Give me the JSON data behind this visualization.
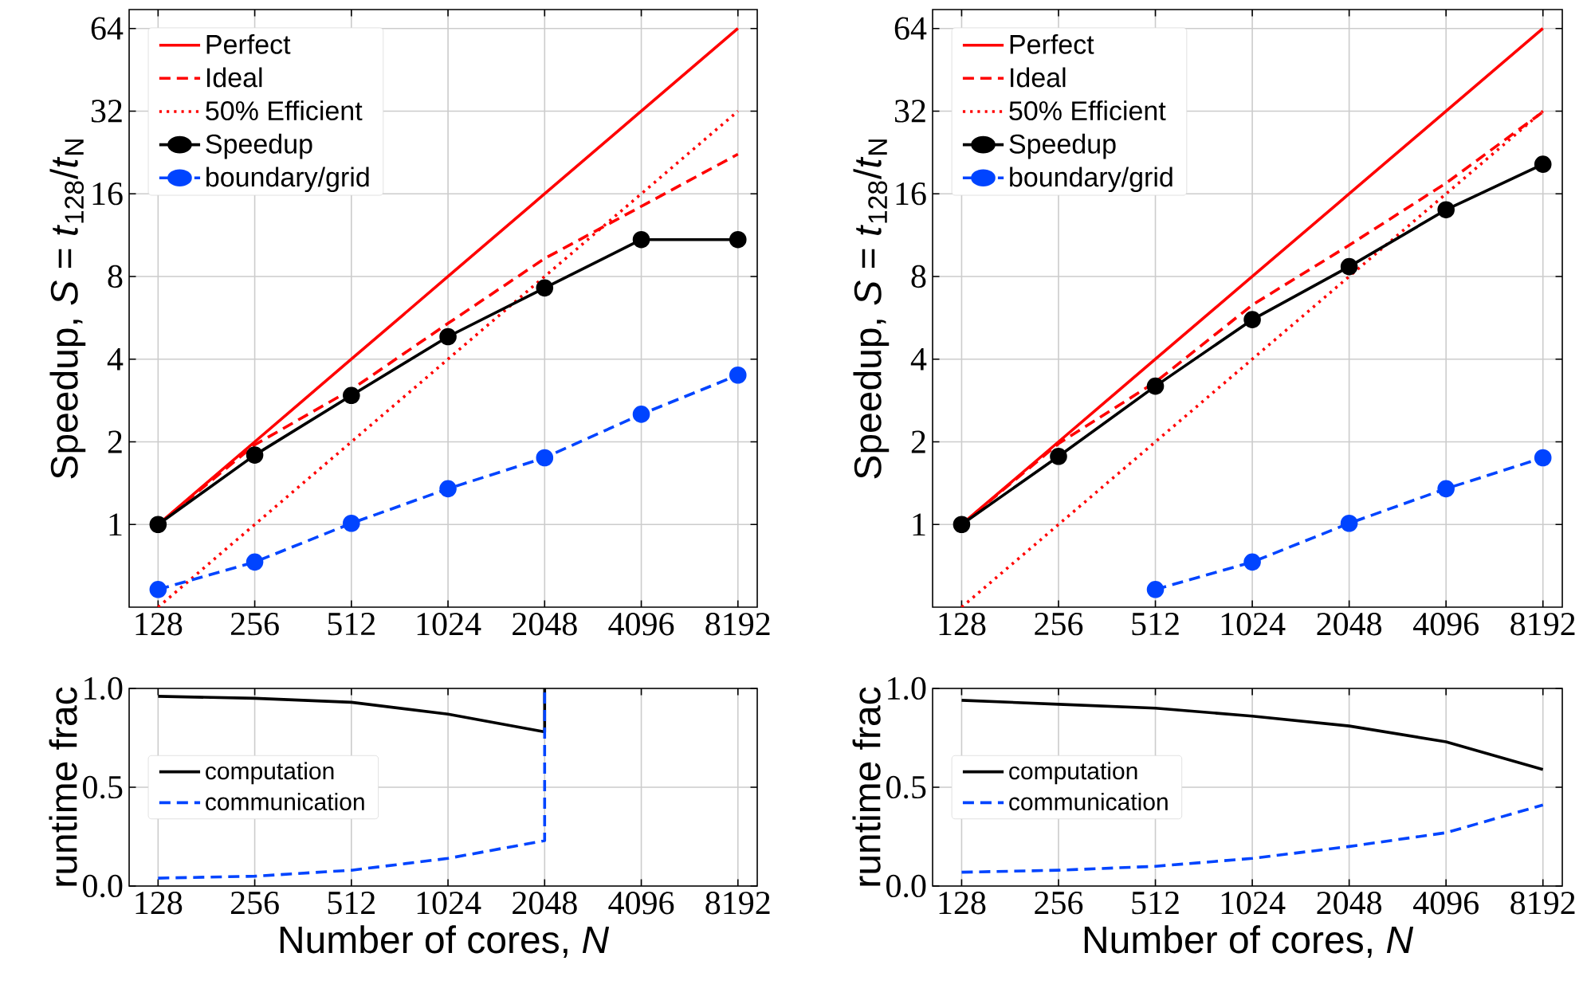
{
  "chart_data": [
    {
      "type": "line",
      "ylabel": "Speedup, *S* = *t*$_{128}$/*t*$_{N}$",
      "log": "xy",
      "grid": true,
      "legend": "top left",
      "x": [
        128,
        256,
        512,
        1024,
        2048,
        4096,
        8192
      ],
      "xlim": [
        104,
        9410
      ],
      "ylim": [
        0.5,
        75
      ],
      "xticks": [
        128,
        256,
        512,
        1024,
        2048,
        4096,
        8192
      ],
      "yticks": [
        1,
        2,
        4,
        8,
        16,
        32,
        64
      ],
      "series": [
        {
          "name": "Perfect",
          "color": "#ff0000",
          "line_style": "solid",
          "values": [
            1,
            2,
            4,
            8,
            16,
            32,
            64
          ]
        },
        {
          "name": "Ideal",
          "color": "#ff0000",
          "line_style": "dashed",
          "values": [
            1,
            1.95,
            3.1,
            5.4,
            9.3,
            14.4,
            22.3
          ]
        },
        {
          "name": "50% Efficient",
          "color": "#ff0000",
          "line_style": "dotted",
          "values": [
            0.5,
            1,
            2,
            4,
            8,
            16,
            32
          ]
        },
        {
          "name": "Speedup",
          "color": "#000000",
          "line_style": "solid",
          "marker": "circle",
          "values": [
            1,
            1.79,
            2.95,
            4.83,
            7.27,
            10.9,
            10.9
          ]
        },
        {
          "name": "boundary/grid",
          "color": "#0044ff",
          "line_style": "dashed",
          "marker": "circle",
          "values": [
            0.58,
            0.73,
            1.01,
            1.35,
            1.75,
            2.52,
            3.5
          ]
        }
      ]
    },
    {
      "type": "line",
      "ylabel": "Speedup, *S* = *t*$_{128}$/*t*$_{N}$",
      "log": "xy",
      "grid": true,
      "legend": "top left",
      "x": [
        128,
        256,
        512,
        1024,
        2048,
        4096,
        8192
      ],
      "xlim": [
        104,
        9410
      ],
      "ylim": [
        0.5,
        75
      ],
      "xticks": [
        128,
        256,
        512,
        1024,
        2048,
        4096,
        8192
      ],
      "yticks": [
        1,
        2,
        4,
        8,
        16,
        32,
        64
      ],
      "series": [
        {
          "name": "Perfect",
          "color": "#ff0000",
          "line_style": "solid",
          "values": [
            1,
            2,
            4,
            8,
            16,
            32,
            64
          ]
        },
        {
          "name": "Ideal",
          "color": "#ff0000",
          "line_style": "dashed",
          "values": [
            1,
            1.97,
            3.3,
            6.3,
            10.4,
            17.5,
            31.8
          ]
        },
        {
          "name": "50% Efficient",
          "color": "#ff0000",
          "line_style": "dotted",
          "values": [
            0.5,
            1,
            2,
            4,
            8,
            16,
            32
          ]
        },
        {
          "name": "Speedup",
          "color": "#000000",
          "line_style": "solid",
          "marker": "circle",
          "values": [
            1,
            1.77,
            3.19,
            5.57,
            8.69,
            14.0,
            20.5
          ]
        },
        {
          "name": "boundary/grid",
          "color": "#0044ff",
          "line_style": "dashed",
          "marker": "circle",
          "values": [
            null,
            null,
            0.58,
            0.73,
            1.01,
            1.35,
            1.75
          ]
        }
      ]
    },
    {
      "type": "line",
      "xlabel": "Number of cores, *N*",
      "ylabel": "runtime frac",
      "log": "x",
      "grid": true,
      "legend": "left",
      "xlim": [
        104,
        9410
      ],
      "ylim": [
        0,
        1
      ],
      "xticks": [
        128,
        256,
        512,
        1024,
        2048,
        4096,
        8192
      ],
      "yticks": [
        {
          "value": 0,
          "label": "0.0"
        },
        {
          "value": 0.5,
          "label": "0.5"
        },
        {
          "value": 1,
          "label": "1.0"
        }
      ],
      "series": [
        {
          "name": "computation",
          "color": "#000000",
          "line_style": "solid",
          "x": [
            128,
            256,
            512,
            1024,
            2048,
            2048
          ],
          "values": [
            0.96,
            0.95,
            0.93,
            0.87,
            0.78,
            1.0
          ]
        },
        {
          "name": "communication",
          "color": "#0044ff",
          "line_style": "dashed",
          "x": [
            128,
            256,
            512,
            1024,
            2048,
            2048
          ],
          "values": [
            0.04,
            0.05,
            0.08,
            0.14,
            0.23,
            1.0
          ]
        }
      ]
    },
    {
      "type": "line",
      "xlabel": "Number of cores, *N*",
      "ylabel": "runtime frac",
      "log": "x",
      "grid": true,
      "legend": "left",
      "x": [
        128,
        256,
        512,
        1024,
        2048,
        4096,
        8192
      ],
      "xlim": [
        104,
        9410
      ],
      "ylim": [
        0,
        1
      ],
      "xticks": [
        128,
        256,
        512,
        1024,
        2048,
        4096,
        8192
      ],
      "yticks": [
        {
          "value": 0,
          "label": "0.0"
        },
        {
          "value": 0.5,
          "label": "0.5"
        },
        {
          "value": 1,
          "label": "1.0"
        }
      ],
      "series": [
        {
          "name": "computation",
          "color": "#000000",
          "line_style": "solid",
          "values": [
            0.94,
            0.92,
            0.9,
            0.86,
            0.81,
            0.73,
            0.59
          ]
        },
        {
          "name": "communication",
          "color": "#0044ff",
          "line_style": "dashed",
          "values": [
            0.07,
            0.08,
            0.1,
            0.14,
            0.2,
            0.27,
            0.41
          ]
        }
      ]
    }
  ]
}
